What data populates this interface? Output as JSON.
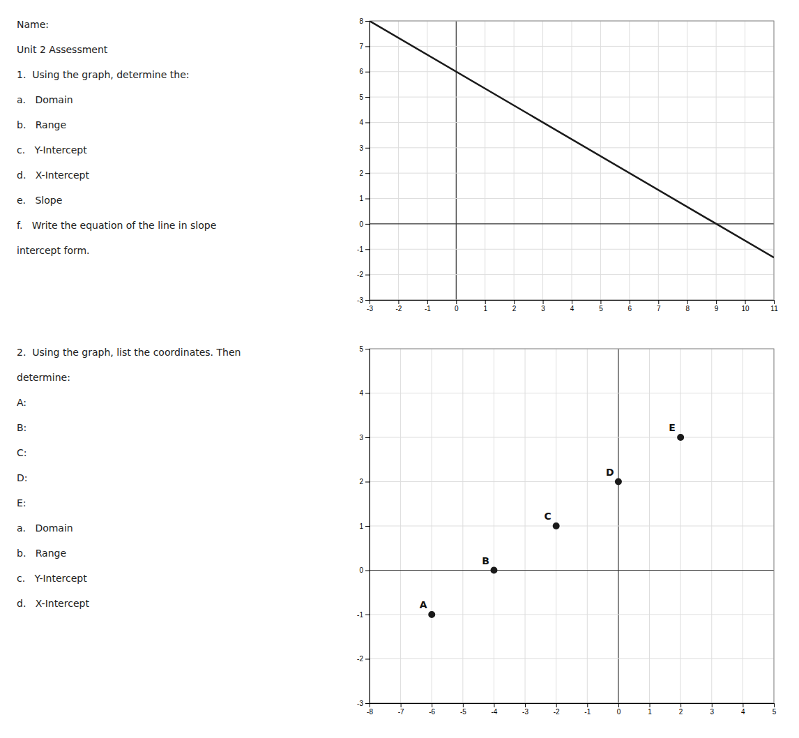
{
  "chart_data": [
    {
      "type": "line",
      "annotations": [
        "Name:",
        "Unit 2 Assessment",
        "1.  Using the graph, determine the:",
        "a.   Domain",
        "b.   Range",
        "c.   Y-Intercept",
        "d.   X-Intercept",
        "e.   Slope",
        "f.   Write the equation of the line in slope",
        "intercept form."
      ],
      "x": [
        -3,
        11
      ],
      "values": [
        8,
        -1.33
      ],
      "color": "#1a1a1a",
      "xlim": [
        -3,
        11
      ],
      "ylim": [
        -3,
        8
      ],
      "xticks": [
        -3,
        -2,
        -1,
        0,
        1,
        2,
        3,
        4,
        5,
        6,
        7,
        8,
        9,
        10,
        11
      ],
      "yticks": [
        -3,
        -2,
        -1,
        0,
        1,
        2,
        3,
        4,
        5,
        6,
        7,
        8
      ],
      "grid": true
    },
    {
      "type": "scatter",
      "annotations": [
        "2.  Using the graph, list the coordinates. Then",
        "determine:",
        "A:",
        "B:",
        "C:",
        "D:",
        "E:",
        "a.   Domain",
        "b.   Range",
        "c.   Y-Intercept",
        "d.   X-Intercept"
      ],
      "categories": [
        "A",
        "B",
        "C",
        "D",
        "E"
      ],
      "x": [
        -6,
        -4,
        -2,
        0,
        2
      ],
      "values": [
        -1,
        0,
        1,
        2,
        3
      ],
      "color": "#1a1a1a",
      "xlim": [
        -8,
        5
      ],
      "ylim": [
        -3,
        5
      ],
      "xticks": [
        -8,
        -7,
        -6,
        -5,
        -4,
        -3,
        -2,
        -1,
        0,
        1,
        2,
        3,
        4,
        5
      ],
      "yticks": [
        -3,
        -2,
        -1,
        0,
        1,
        2,
        3,
        4,
        5
      ],
      "grid": true
    }
  ]
}
